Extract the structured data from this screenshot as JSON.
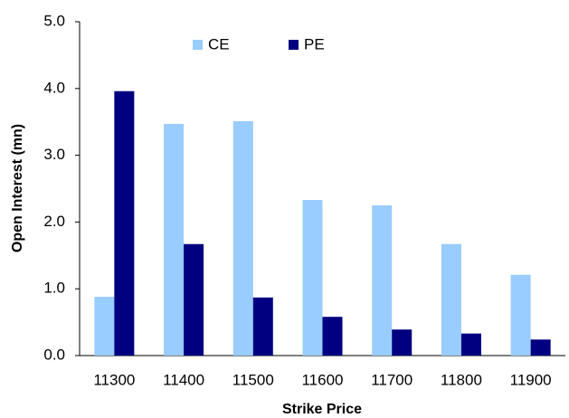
{
  "chart_data": {
    "type": "bar",
    "x_label": "Strike Price",
    "y_label": "Open Interest (mn)",
    "categories": [
      "11300",
      "11400",
      "11500",
      "11600",
      "11700",
      "11800",
      "11900"
    ],
    "series": [
      {
        "name": "CE",
        "color": "#99ccff",
        "values": [
          0.88,
          3.47,
          3.51,
          2.33,
          2.25,
          1.67,
          1.21
        ]
      },
      {
        "name": "PE",
        "color": "#000080",
        "values": [
          3.96,
          1.67,
          0.87,
          0.58,
          0.39,
          0.33,
          0.24
        ]
      }
    ],
    "ylim": [
      0,
      5
    ],
    "yticks": [
      {
        "value": 0,
        "label": "0.0"
      },
      {
        "value": 1,
        "label": "1.0"
      },
      {
        "value": 2,
        "label": "2.0"
      },
      {
        "value": 3,
        "label": "3.0"
      },
      {
        "value": 4,
        "label": "4.0"
      },
      {
        "value": 5,
        "label": "5.0"
      }
    ]
  }
}
